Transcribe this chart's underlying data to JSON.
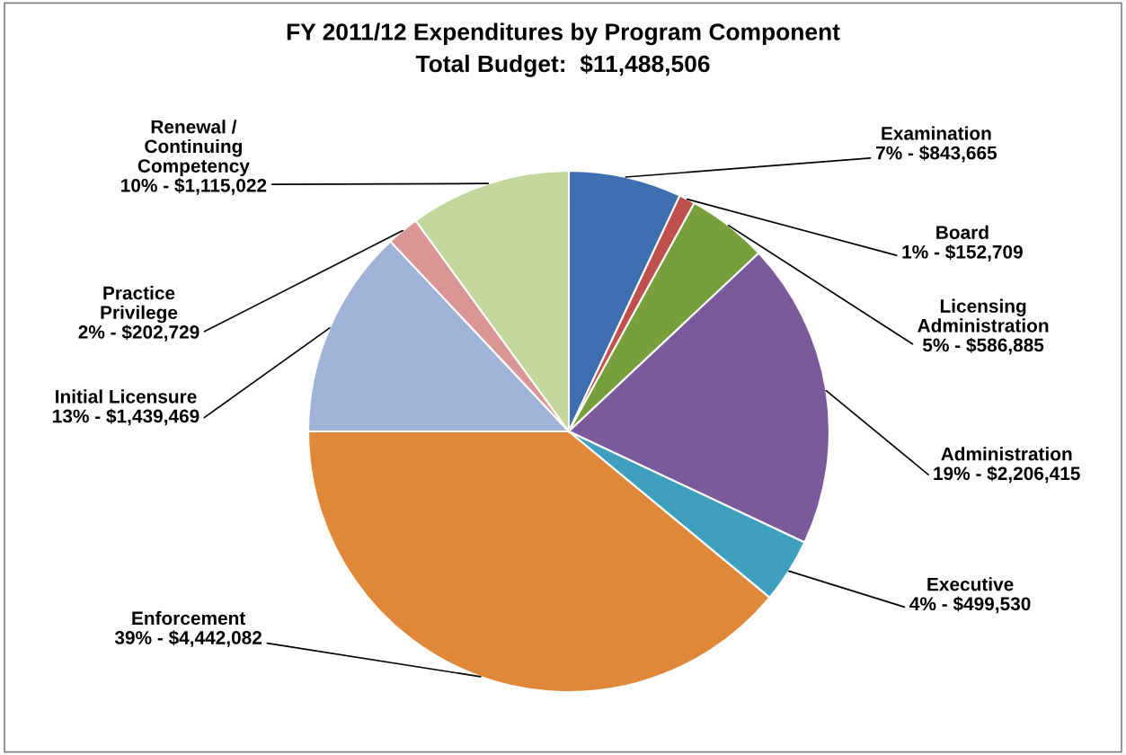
{
  "chart_data": {
    "type": "pie",
    "title": "FY 2011/12 Expenditures by Program Component",
    "subtitle": "Total Budget:  $11,488,506",
    "categories": [
      "Examination",
      "Board",
      "Licensing\nAdministration",
      "Administration",
      "Executive",
      "Enforcement",
      "Initial Licensure",
      "Practice\nPrivilege",
      "Renewal /\nContinuing\nCompetency"
    ],
    "values": [
      7,
      1,
      5,
      19,
      4,
      39,
      13,
      2,
      10
    ],
    "colors": [
      "#3e6fb0",
      "#c0504d",
      "#77a03c",
      "#7a5a9a",
      "#3fa0bd",
      "#e0883a",
      "#9fb3d9",
      "#d99694",
      "#c3d69b"
    ],
    "value_labels": [
      "7% - $843,665",
      "1% - $152,709",
      "5% - $586,885",
      "19% - $2,206,415",
      "4% - $499,530",
      "39% - $4,442,082",
      "13% - $1,439,469",
      "2% - $202,729",
      "10% - $1,115,022"
    ],
    "legend": false
  }
}
